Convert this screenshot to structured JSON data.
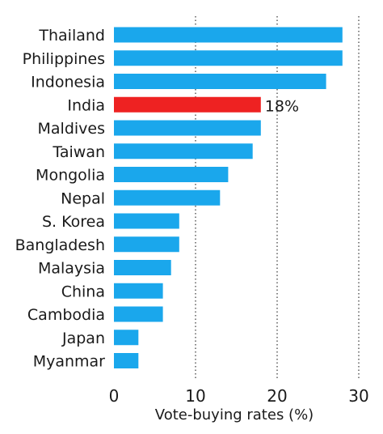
{
  "chart_data": {
    "type": "bar",
    "orientation": "horizontal",
    "categories": [
      "Thailand",
      "Philippines",
      "Indonesia",
      "India",
      "Maldives",
      "Taiwan",
      "Mongolia",
      "Nepal",
      "S. Korea",
      "Bangladesh",
      "Malaysia",
      "China",
      "Cambodia",
      "Japan",
      "Myanmar"
    ],
    "values": [
      28,
      28,
      26,
      18,
      18,
      17,
      14,
      13,
      8,
      8,
      7,
      6,
      6,
      3,
      3
    ],
    "highlight": {
      "category": "India",
      "label": "18%"
    },
    "xlabel": "Vote-buying rates (%)",
    "ylabel": "",
    "xlim": [
      0,
      30
    ],
    "xticks": [
      "0",
      "10",
      "20",
      "30"
    ],
    "grid": "dotted vertical lines at 10, 20, 30",
    "colors": {
      "bar": "#1aa7ec",
      "highlight": "#ee2222",
      "grid": "#444444",
      "text": "#1a1a1a"
    }
  }
}
